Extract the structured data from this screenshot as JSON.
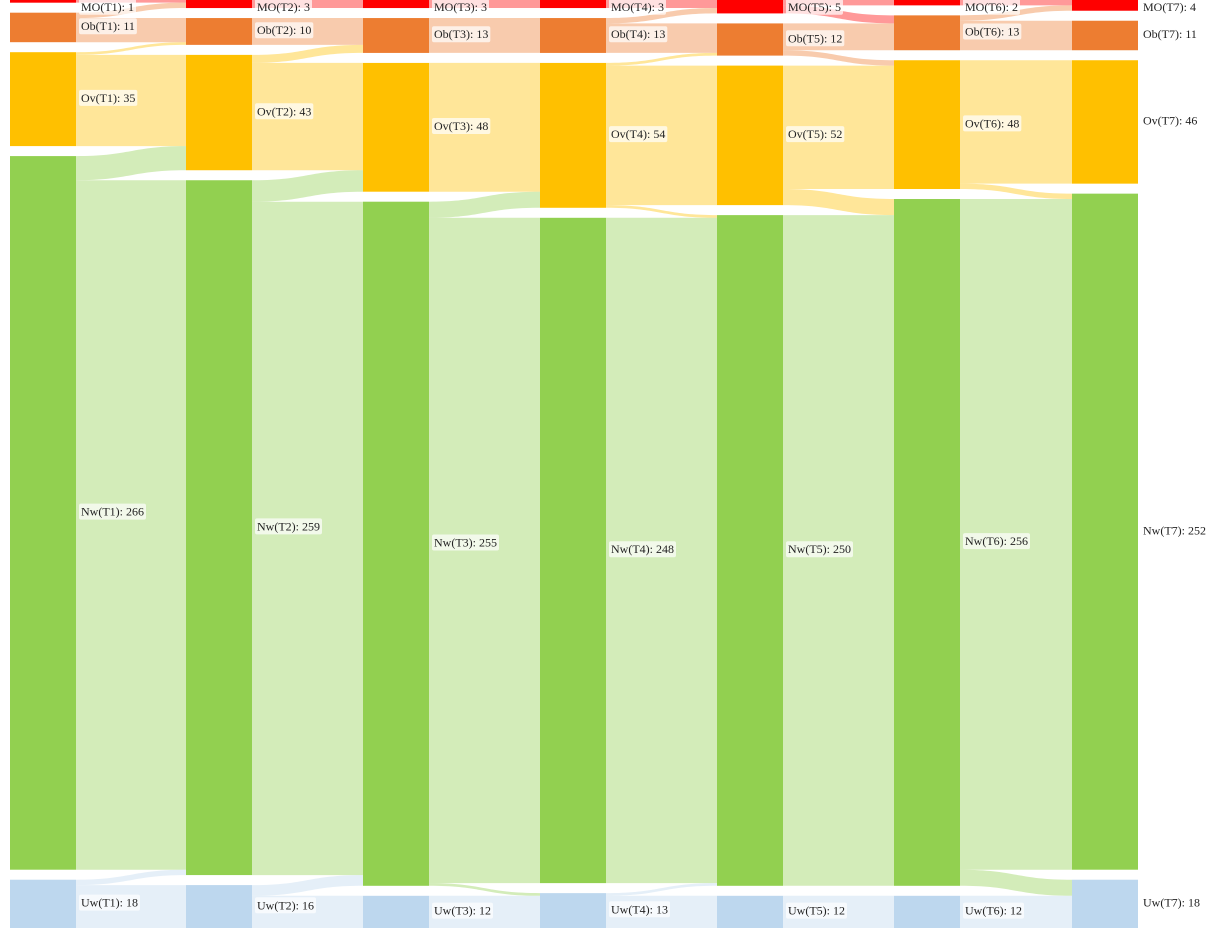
{
  "nodes": [
    {
      "label": "MO(T1): 1",
      "value": 1,
      "color": "#ff0000"
    },
    {
      "label": "Ob(T1): 11",
      "value": 11,
      "color": "#ed7d31"
    },
    {
      "label": "Ov(T1): 35",
      "value": 35,
      "color": "#ffc000"
    },
    {
      "label": "Nw(T1): 266",
      "value": 266,
      "color": "#92d050"
    },
    {
      "label": "Uw(T1): 18",
      "value": 18,
      "color": "#bdd7ee"
    },
    {
      "label": "MO(T2): 3",
      "value": 3,
      "color": "#ff0000"
    },
    {
      "label": "Ob(T2): 10",
      "value": 10,
      "color": "#ed7d31"
    },
    {
      "label": "Ov(T2): 43",
      "value": 43,
      "color": "#ffc000"
    },
    {
      "label": "Nw(T2): 259",
      "value": 259,
      "color": "#92d050"
    },
    {
      "label": "Uw(T2): 16",
      "value": 16,
      "color": "#bdd7ee"
    },
    {
      "label": "MO(T3): 3",
      "value": 3,
      "color": "#ff0000"
    },
    {
      "label": "Ob(T3): 13",
      "value": 13,
      "color": "#ed7d31"
    },
    {
      "label": "Ov(T3): 48",
      "value": 48,
      "color": "#ffc000"
    },
    {
      "label": "Nw(T3): 255",
      "value": 255,
      "color": "#92d050"
    },
    {
      "label": "Uw(T3): 12",
      "value": 12,
      "color": "#bdd7ee"
    },
    {
      "label": "MO(T4): 3",
      "value": 3,
      "color": "#ff0000"
    },
    {
      "label": "Ob(T4): 13",
      "value": 13,
      "color": "#ed7d31"
    },
    {
      "label": "Ov(T4): 54",
      "value": 54,
      "color": "#ffc000"
    },
    {
      "label": "Nw(T4): 248",
      "value": 248,
      "color": "#92d050"
    },
    {
      "label": "Uw(T4): 13",
      "value": 13,
      "color": "#bdd7ee"
    },
    {
      "label": "MO(T5): 5",
      "value": 5,
      "color": "#ff0000"
    },
    {
      "label": "Ob(T5): 12",
      "value": 12,
      "color": "#ed7d31"
    },
    {
      "label": "Ov(T5): 52",
      "value": 52,
      "color": "#ffc000"
    },
    {
      "label": "Nw(T5): 250",
      "value": 250,
      "color": "#92d050"
    },
    {
      "label": "Uw(T5): 12",
      "value": 12,
      "color": "#bdd7ee"
    },
    {
      "label": "MO(T6): 2",
      "value": 2,
      "color": "#ff0000"
    },
    {
      "label": "Ob(T6): 13",
      "value": 13,
      "color": "#ed7d31"
    },
    {
      "label": "Ov(T6): 48",
      "value": 48,
      "color": "#ffc000"
    },
    {
      "label": "Nw(T6): 256",
      "value": 256,
      "color": "#92d050"
    },
    {
      "label": "Uw(T6): 12",
      "value": 12,
      "color": "#bdd7ee"
    },
    {
      "label": "MO(T7): 4",
      "value": 4,
      "color": "#ff0000"
    },
    {
      "label": "Ob(T7): 11",
      "value": 11,
      "color": "#ed7d31"
    },
    {
      "label": "Ov(T7): 46",
      "value": 46,
      "color": "#ffc000"
    },
    {
      "label": "Nw(T7): 252",
      "value": 252,
      "color": "#92d050"
    },
    {
      "label": "Uw(T7): 18",
      "value": 18,
      "color": "#bdd7ee"
    }
  ],
  "links": [
    {
      "source": 0,
      "target": 5,
      "value": 1
    },
    {
      "source": 1,
      "target": 5,
      "value": 2
    },
    {
      "source": 1,
      "target": 6,
      "value": 9
    },
    {
      "source": 2,
      "target": 6,
      "value": 1
    },
    {
      "source": 2,
      "target": 7,
      "value": 34
    },
    {
      "source": 3,
      "target": 7,
      "value": 9
    },
    {
      "source": 3,
      "target": 8,
      "value": 257
    },
    {
      "source": 4,
      "target": 8,
      "value": 2
    },
    {
      "source": 4,
      "target": 9,
      "value": 16
    },
    {
      "source": 5,
      "target": 10,
      "value": 3
    },
    {
      "source": 6,
      "target": 11,
      "value": 10
    },
    {
      "source": 7,
      "target": 11,
      "value": 3
    },
    {
      "source": 7,
      "target": 12,
      "value": 40
    },
    {
      "source": 8,
      "target": 12,
      "value": 8
    },
    {
      "source": 8,
      "target": 13,
      "value": 251
    },
    {
      "source": 9,
      "target": 13,
      "value": 4
    },
    {
      "source": 9,
      "target": 14,
      "value": 12
    },
    {
      "source": 10,
      "target": 15,
      "value": 3
    },
    {
      "source": 11,
      "target": 16,
      "value": 13
    },
    {
      "source": 12,
      "target": 17,
      "value": 48
    },
    {
      "source": 13,
      "target": 17,
      "value": 6
    },
    {
      "source": 13,
      "target": 18,
      "value": 248
    },
    {
      "source": 13,
      "target": 19,
      "value": 1
    },
    {
      "source": 14,
      "target": 19,
      "value": 12
    },
    {
      "source": 15,
      "target": 20,
      "value": 3
    },
    {
      "source": 16,
      "target": 20,
      "value": 2
    },
    {
      "source": 16,
      "target": 21,
      "value": 11
    },
    {
      "source": 17,
      "target": 21,
      "value": 1
    },
    {
      "source": 17,
      "target": 22,
      "value": 52
    },
    {
      "source": 17,
      "target": 23,
      "value": 1
    },
    {
      "source": 18,
      "target": 23,
      "value": 248
    },
    {
      "source": 19,
      "target": 23,
      "value": 1
    },
    {
      "source": 19,
      "target": 24,
      "value": 12
    },
    {
      "source": 20,
      "target": 25,
      "value": 2
    },
    {
      "source": 20,
      "target": 26,
      "value": 3
    },
    {
      "source": 21,
      "target": 26,
      "value": 10
    },
    {
      "source": 21,
      "target": 27,
      "value": 2
    },
    {
      "source": 22,
      "target": 27,
      "value": 46
    },
    {
      "source": 22,
      "target": 28,
      "value": 6
    },
    {
      "source": 23,
      "target": 28,
      "value": 250
    },
    {
      "source": 24,
      "target": 29,
      "value": 12
    },
    {
      "source": 25,
      "target": 30,
      "value": 2
    },
    {
      "source": 26,
      "target": 30,
      "value": 2
    },
    {
      "source": 26,
      "target": 31,
      "value": 11
    },
    {
      "source": 27,
      "target": 32,
      "value": 46
    },
    {
      "source": 27,
      "target": 33,
      "value": 2
    },
    {
      "source": 28,
      "target": 33,
      "value": 250
    },
    {
      "source": 28,
      "target": 34,
      "value": 6
    },
    {
      "source": 29,
      "target": 34,
      "value": 12
    }
  ]
}
